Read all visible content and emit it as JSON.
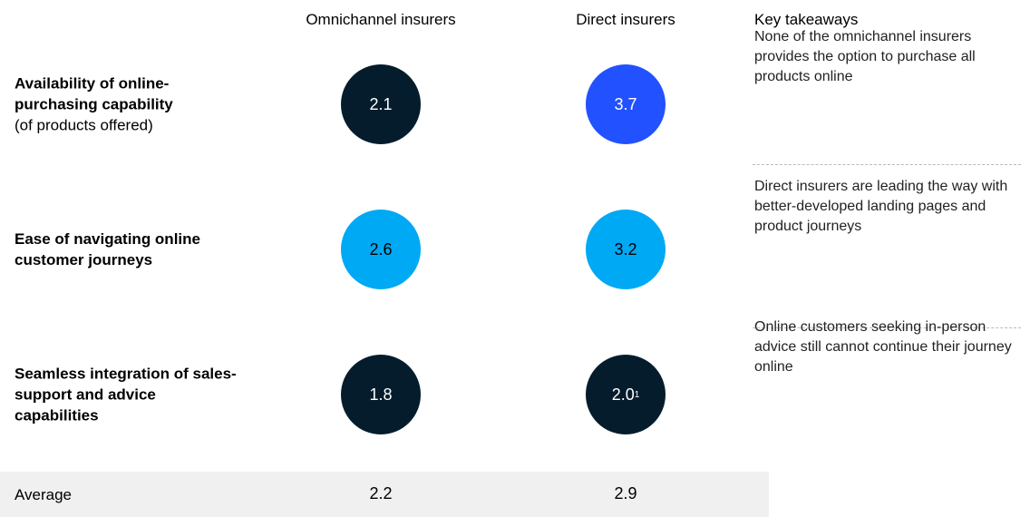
{
  "header": {
    "columns": [
      "Omnichannel insurers",
      "Direct insurers",
      "Key takeaways"
    ]
  },
  "rows": [
    {
      "label": "Availability of online-purchasing capability",
      "sublabel": "(of products offered)",
      "omnichannel": {
        "value": "2.1",
        "color": "#051c2c"
      },
      "direct": {
        "value": "3.7",
        "color": "#2251ff"
      },
      "takeaway": "None of the omnichannel insurers provides the option to purchase all products online"
    },
    {
      "label": "Ease of navigating online customer journeys",
      "omnichannel": {
        "value": "2.6",
        "color": "#00a9f4"
      },
      "direct": {
        "value": "3.2",
        "color": "#00a9f4"
      },
      "takeaway": "Direct insurers are leading the way with better-developed landing pages and product journeys"
    },
    {
      "label": "Seamless integration of sales-support and advice capabilities",
      "omnichannel": {
        "value": "1.8",
        "color": "#051c2c"
      },
      "direct": {
        "value": "2.0",
        "footnote": "1",
        "color": "#051c2c"
      },
      "takeaway": "Online customers seeking in-person advice still cannot continue their journey online"
    }
  ],
  "average": {
    "label": "Average",
    "omnichannel": "2.2",
    "direct": "2.9"
  }
}
